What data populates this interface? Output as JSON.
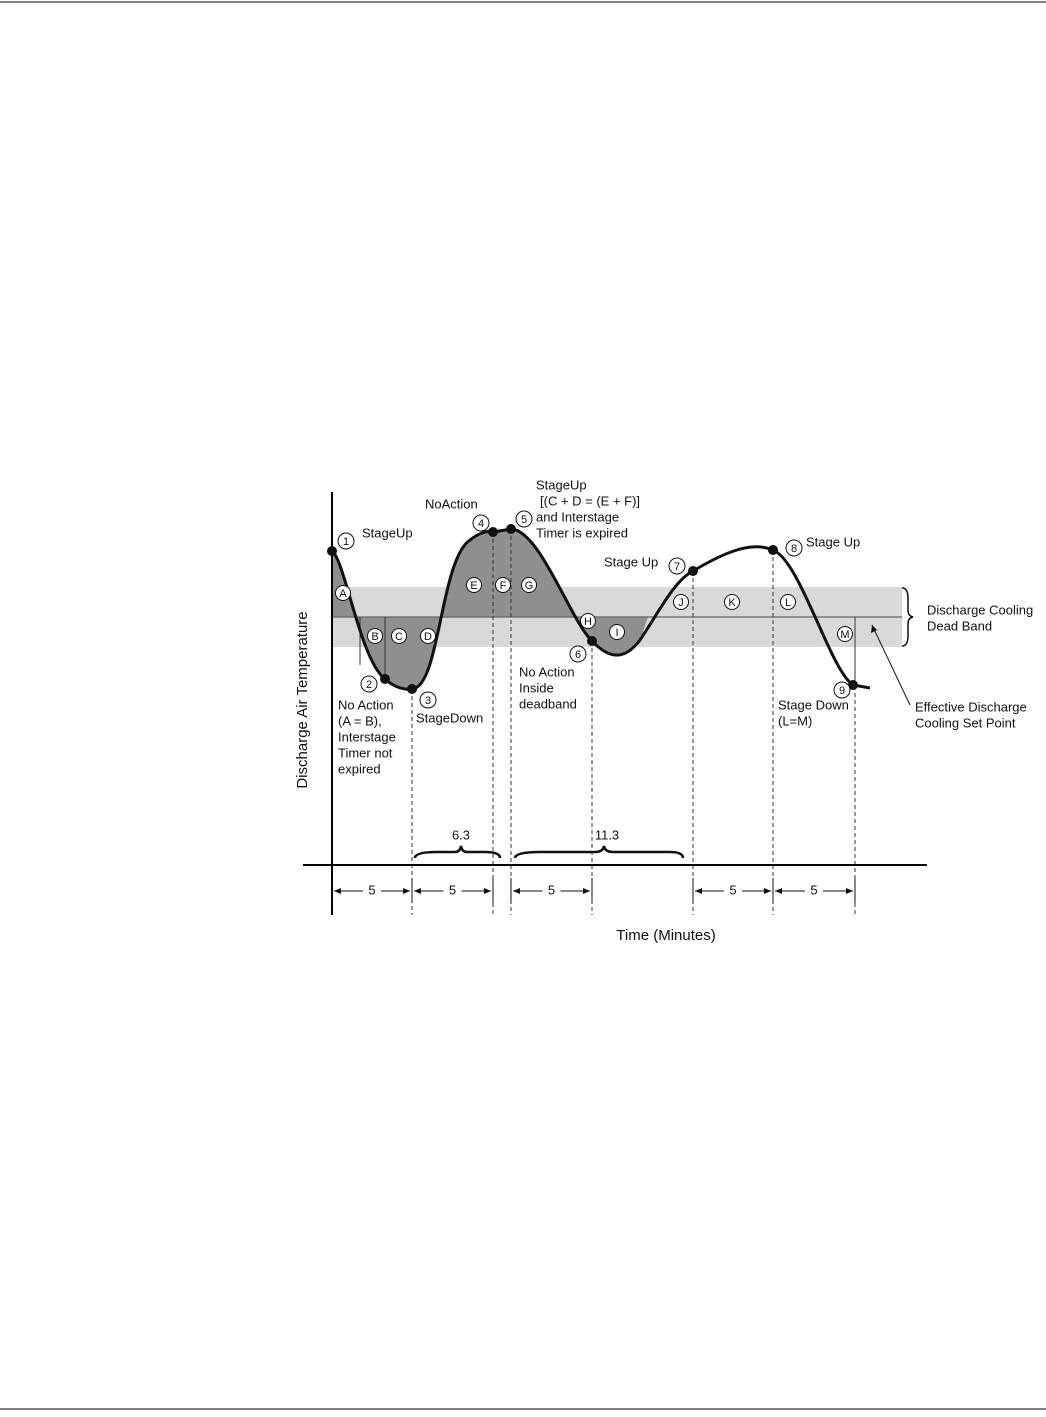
{
  "diagram": {
    "axis_labels": {
      "y": "Discharge Air Temperature",
      "x": "Time (Minutes)"
    },
    "points": [
      "1",
      "2",
      "3",
      "4",
      "5",
      "6",
      "7",
      "8",
      "9"
    ],
    "regions": [
      "A",
      "B",
      "C",
      "D",
      "E",
      "F",
      "G",
      "H",
      "I",
      "J",
      "K",
      "L",
      "M"
    ],
    "annotations": [
      [
        "StageUp"
      ],
      [
        "No Action",
        "(A = B),",
        "Interstage",
        "Timer not",
        "expired"
      ],
      [
        "StageDown"
      ],
      [
        "NoAction"
      ],
      [
        "StageUp",
        "[(C + D = (E + F)]",
        "and Interstage",
        "Timer is expired"
      ],
      [
        "No Action",
        "Inside",
        "deadband"
      ],
      [
        "Stage Up"
      ],
      [
        "Stage Up"
      ],
      [
        "Stage Down",
        "(L=M)"
      ]
    ],
    "intervals": [
      "5",
      "5",
      "5",
      "5",
      "5"
    ],
    "spans": [
      "6.3",
      "11.3"
    ],
    "band_label": [
      "Discharge Cooling",
      "Dead Band"
    ],
    "setpoint_label": [
      "Effective Discharge",
      "Cooling Set Point"
    ]
  }
}
